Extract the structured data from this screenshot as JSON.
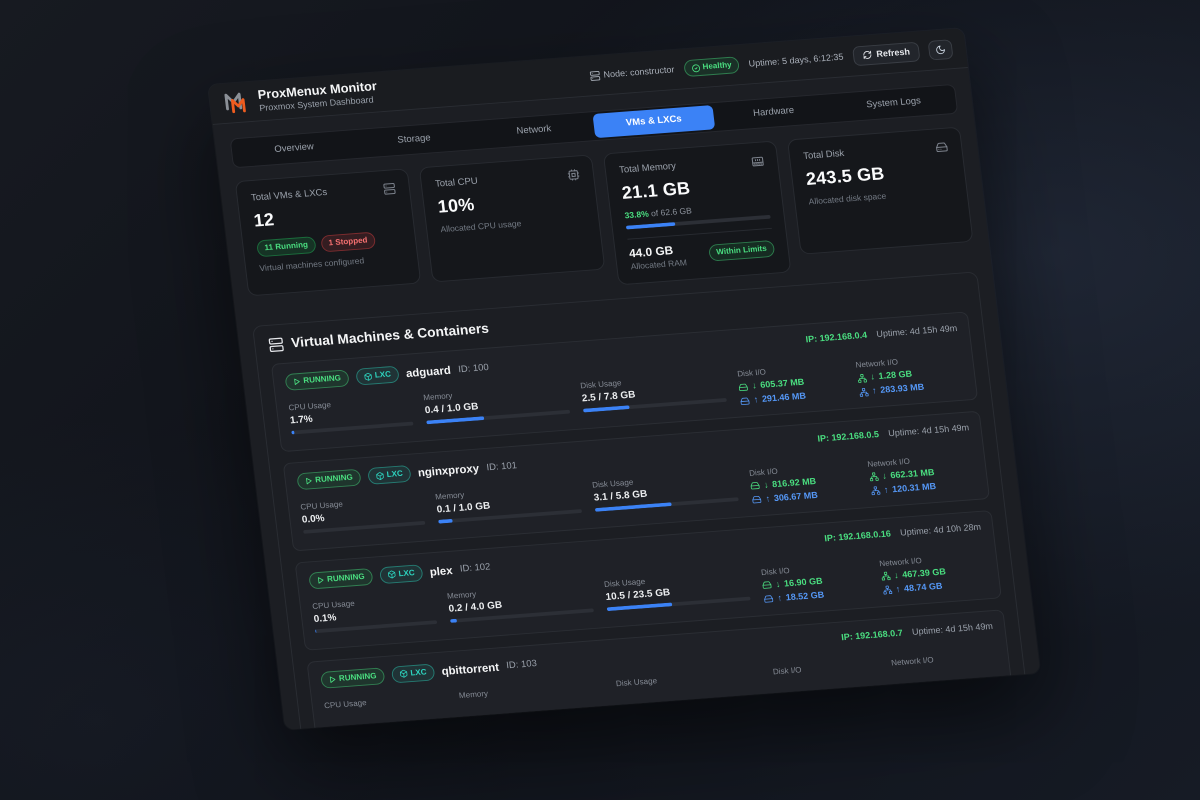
{
  "header": {
    "title": "ProxMenux Monitor",
    "subtitle": "Proxmox System Dashboard"
  },
  "topbar": {
    "node_label": "Node: constructor",
    "health_badge": "Healthy",
    "uptime": "Uptime: 5 days, 6:12:35",
    "refresh_label": "Refresh"
  },
  "tabs": [
    {
      "label": "Overview",
      "active": false
    },
    {
      "label": "Storage",
      "active": false
    },
    {
      "label": "Network",
      "active": false
    },
    {
      "label": "VMs & LXCs",
      "active": true
    },
    {
      "label": "Hardware",
      "active": false
    },
    {
      "label": "System Logs",
      "active": false
    }
  ],
  "stats": {
    "vms": {
      "label": "Total VMs & LXCs",
      "value": "12",
      "running_badge": "11 Running",
      "stopped_badge": "1 Stopped",
      "caption": "Virtual machines configured"
    },
    "cpu": {
      "label": "Total CPU",
      "value": "10%",
      "caption": "Allocated CPU usage"
    },
    "memory": {
      "label": "Total Memory",
      "value": "21.1 GB",
      "pct": 33.8,
      "pct_text": "33.8%",
      "of_text": "of 62.6 GB",
      "alloc_value": "44.0 GB",
      "alloc_caption": "Allocated RAM",
      "badge": "Within Limits"
    },
    "disk": {
      "label": "Total Disk",
      "value": "243.5 GB",
      "caption": "Allocated disk space"
    }
  },
  "section": {
    "title": "Virtual Machines & Containers"
  },
  "labels": {
    "cpu": "CPU Usage",
    "memory": "Memory",
    "disk": "Disk Usage",
    "disk_io": "Disk I/O",
    "net_io": "Network I/O"
  },
  "glyphs": {
    "down": "↓",
    "up": "↑"
  },
  "vms": [
    {
      "name": "adguard",
      "id": "ID: 100",
      "status": "RUNNING",
      "type": "LXC",
      "ip": "IP: 192.168.0.4",
      "uptime": "Uptime: 4d 15h 49m",
      "cpu": {
        "value": "1.7%",
        "pct": 2
      },
      "memory": {
        "value": "0.4 / 1.0 GB",
        "pct": 40
      },
      "disk": {
        "value": "2.5 / 7.8 GB",
        "pct": 32
      },
      "disk_io": {
        "down": "605.37 MB",
        "up": "291.46 MB"
      },
      "net_io": {
        "down": "1.28 GB",
        "up": "283.93 MB"
      }
    },
    {
      "name": "nginxproxy",
      "id": "ID: 101",
      "status": "RUNNING",
      "type": "LXC",
      "ip": "IP: 192.168.0.5",
      "uptime": "Uptime: 4d 15h 49m",
      "cpu": {
        "value": "0.0%",
        "pct": 0
      },
      "memory": {
        "value": "0.1 / 1.0 GB",
        "pct": 10
      },
      "disk": {
        "value": "3.1 / 5.8 GB",
        "pct": 53
      },
      "disk_io": {
        "down": "816.92 MB",
        "up": "306.67 MB"
      },
      "net_io": {
        "down": "662.31 MB",
        "up": "120.31 MB"
      }
    },
    {
      "name": "plex",
      "id": "ID: 102",
      "status": "RUNNING",
      "type": "LXC",
      "ip": "IP: 192.168.0.16",
      "uptime": "Uptime: 4d 10h 28m",
      "cpu": {
        "value": "0.1%",
        "pct": 1
      },
      "memory": {
        "value": "0.2 / 4.0 GB",
        "pct": 5
      },
      "disk": {
        "value": "10.5 / 23.5 GB",
        "pct": 45
      },
      "disk_io": {
        "down": "16.90 GB",
        "up": "18.52 GB"
      },
      "net_io": {
        "down": "467.39 GB",
        "up": "48.74 GB"
      }
    },
    {
      "name": "qbittorrent",
      "id": "ID: 103",
      "status": "RUNNING",
      "type": "LXC",
      "ip": "IP: 192.168.0.7",
      "uptime": "Uptime: 4d 15h 49m",
      "cpu": {
        "value": "",
        "pct": 0
      },
      "memory": {
        "value": "",
        "pct": 0
      },
      "disk": {
        "value": "",
        "pct": 0
      },
      "disk_io": {
        "down": "",
        "up": ""
      },
      "net_io": {
        "down": "",
        "up": ""
      }
    }
  ],
  "colors": {
    "accent_blue": "#3b82f6",
    "status_green": "#4ade80",
    "status_red": "#f87171",
    "lxc_teal": "#2dd4bf",
    "io_up_blue": "#5598f7",
    "logo_orange": "#ee5c1f",
    "logo_gray": "#8b9097"
  }
}
